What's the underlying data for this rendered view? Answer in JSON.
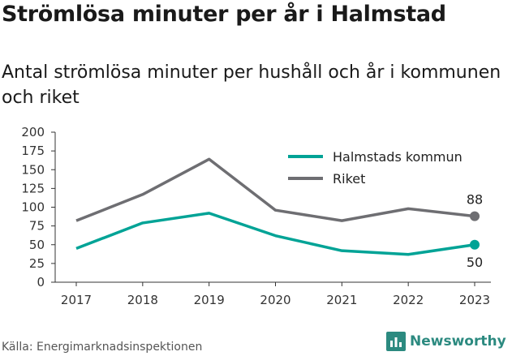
{
  "title": "Strömlösa minuter per år i Halmstad",
  "subtitle": "Antal strömlösa minuter per hushåll och år i kommunen och riket",
  "source": "Källa: Energimarknadsinspektionen",
  "brand": "Newsworthy",
  "colors": {
    "halmstad": "#00A396",
    "riket": "#6E6E72",
    "brand": "#2C8A80"
  },
  "chart_data": {
    "type": "line",
    "x": [
      "2017",
      "2018",
      "2019",
      "2020",
      "2021",
      "2022",
      "2023"
    ],
    "yticks": [
      "0",
      "25",
      "50",
      "75",
      "100",
      "125",
      "150",
      "175",
      "200"
    ],
    "ylim": [
      0,
      200
    ],
    "grid": false,
    "legend_position": "top-right",
    "series": [
      {
        "name": "Halmstads kommun",
        "values": [
          45,
          79,
          92,
          62,
          42,
          37,
          50
        ],
        "color": "#00A396",
        "end_label": "50"
      },
      {
        "name": "Riket",
        "values": [
          82,
          117,
          164,
          96,
          82,
          98,
          88
        ],
        "color": "#6E6E72",
        "end_label": "88"
      }
    ]
  }
}
